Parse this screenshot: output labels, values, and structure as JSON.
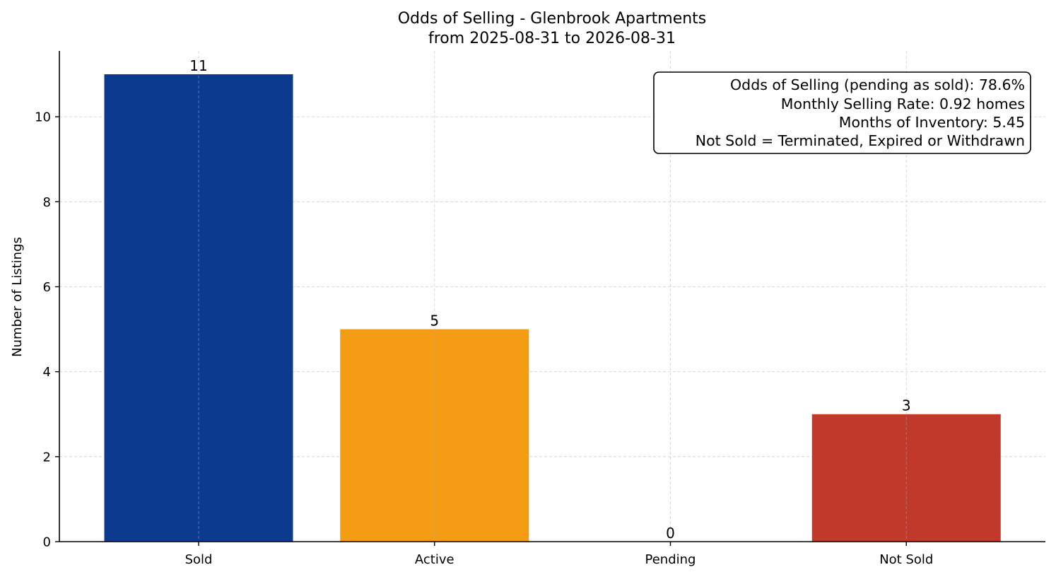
{
  "chart_data": {
    "type": "bar",
    "title": "Odds of Selling - Glenbrook Apartments",
    "subtitle": "from 2025-08-31 to 2026-08-31",
    "xlabel": "",
    "ylabel": "Number of Listings",
    "categories": [
      "Sold",
      "Active",
      "Pending",
      "Not Sold"
    ],
    "values": [
      11,
      5,
      0,
      3
    ],
    "data_labels": [
      "11",
      "5",
      "0",
      "3"
    ],
    "colors": [
      "#0b3a8e",
      "#f39c14",
      "#2e7d32",
      "#c0392b"
    ],
    "ylim": [
      0,
      11.55
    ],
    "yticks": [
      0,
      2,
      4,
      6,
      8,
      10
    ],
    "ytick_labels": [
      "0",
      "2",
      "4",
      "6",
      "8",
      "10"
    ],
    "grid": true,
    "info_box": {
      "placement": "top-right",
      "lines": [
        "Odds of Selling (pending as sold): 78.6%",
        "Monthly Selling Rate: 0.92 homes",
        "Months of Inventory: 5.45",
        "Not Sold = Terminated, Expired or Withdrawn"
      ]
    }
  }
}
